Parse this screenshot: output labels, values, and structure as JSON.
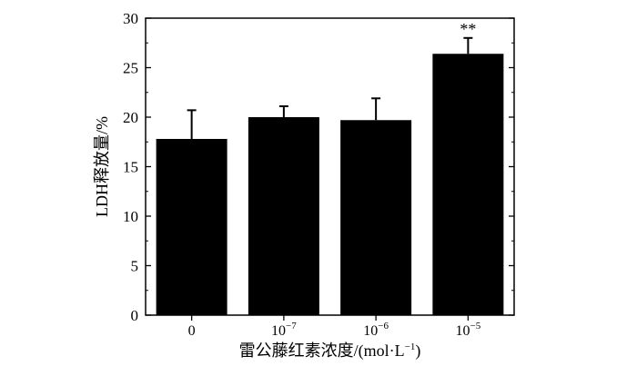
{
  "chart_data": {
    "type": "bar",
    "categories": [
      {
        "base": "0",
        "exp": ""
      },
      {
        "base": "10",
        "exp": "−7"
      },
      {
        "base": "10",
        "exp": "−6"
      },
      {
        "base": "10",
        "exp": "−5"
      }
    ],
    "values": [
      17.8,
      20.0,
      19.7,
      26.4
    ],
    "errors": [
      2.9,
      1.1,
      2.2,
      1.6
    ],
    "annotations": [
      "",
      "",
      "",
      "**"
    ],
    "xlabel": {
      "main": "雷公藤红素浓度/(mol·L",
      "sup": "−1",
      "tail": ")"
    },
    "ylabel": "LDH释放量/%",
    "ylim": [
      0,
      30
    ],
    "yticks": [
      0,
      5,
      10,
      15,
      20,
      25,
      30
    ],
    "bar_color": "#000000",
    "grid": false
  }
}
